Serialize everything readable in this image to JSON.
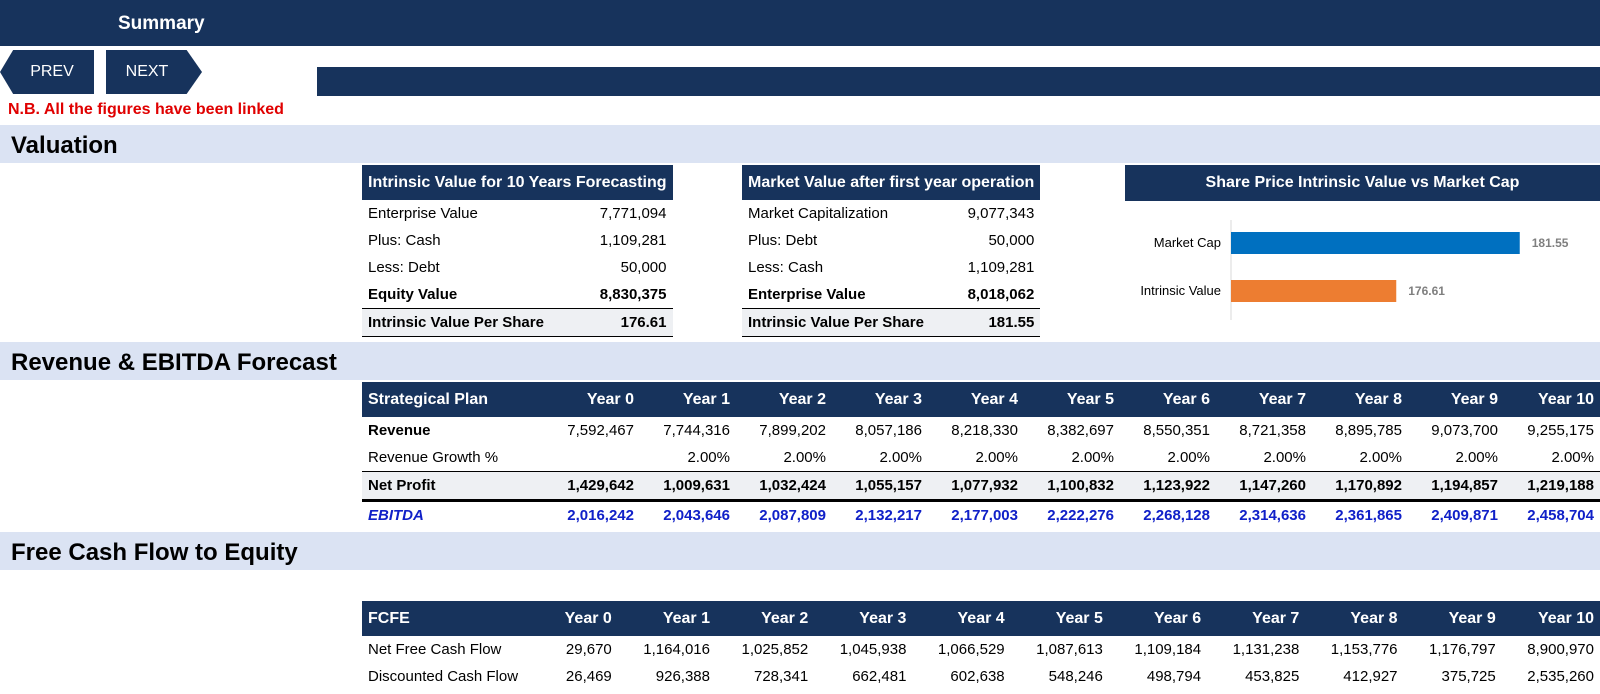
{
  "header": {
    "title": "Summary"
  },
  "nav": {
    "prev_label": "PREV",
    "next_label": "NEXT"
  },
  "note": "N.B. All the figures have been linked",
  "sections": {
    "valuation": "Valuation",
    "forecast": "Revenue & EBITDA Forecast",
    "fcfe": "Free Cash Flow to Equity"
  },
  "intrinsic_table": {
    "title": "Intrinsic Value for 10 Years Forecasting",
    "rows": [
      {
        "label": "Enterprise Value",
        "value": "7,771,094"
      },
      {
        "label": "Plus: Cash",
        "value": "1,109,281"
      },
      {
        "label": "Less: Debt",
        "value": "50,000"
      },
      {
        "label": "Equity Value",
        "value": "8,830,375"
      },
      {
        "label": "Intrinsic Value Per Share",
        "value": "176.61"
      }
    ]
  },
  "market_table": {
    "title": "Market Value after first year operation",
    "rows": [
      {
        "label": "Market Capitalization",
        "value": "9,077,343"
      },
      {
        "label": "Plus: Debt",
        "value": "50,000"
      },
      {
        "label": "Less: Cash",
        "value": "1,109,281"
      },
      {
        "label": "Enterprise Value",
        "value": "8,018,062"
      },
      {
        "label": "Intrinsic Value Per Share",
        "value": "181.55"
      }
    ]
  },
  "chart_data": {
    "type": "bar",
    "orientation": "horizontal",
    "title": "Share Price Intrinsic Value vs Market Cap",
    "categories": [
      "Market Cap",
      "Intrinsic Value"
    ],
    "values": [
      181.55,
      176.61
    ],
    "value_labels": [
      "181.55",
      "176.61"
    ],
    "colors": [
      "#0070c0",
      "#ed7d31"
    ],
    "xlim": [
      170,
      182
    ]
  },
  "forecast_table": {
    "headers": [
      "Strategical Plan",
      "Year 0",
      "Year 1",
      "Year 2",
      "Year 3",
      "Year 4",
      "Year 5",
      "Year 6",
      "Year 7",
      "Year 8",
      "Year 9",
      "Year 10"
    ],
    "revenue": {
      "label": "Revenue",
      "values": [
        "7,592,467",
        "7,744,316",
        "7,899,202",
        "8,057,186",
        "8,218,330",
        "8,382,697",
        "8,550,351",
        "8,721,358",
        "8,895,785",
        "9,073,700",
        "9,255,175"
      ]
    },
    "growth": {
      "label": "Revenue Growth %",
      "values": [
        "",
        "2.00%",
        "2.00%",
        "2.00%",
        "2.00%",
        "2.00%",
        "2.00%",
        "2.00%",
        "2.00%",
        "2.00%",
        "2.00%"
      ]
    },
    "net_profit": {
      "label": "Net Profit",
      "values": [
        "1,429,642",
        "1,009,631",
        "1,032,424",
        "1,055,157",
        "1,077,932",
        "1,100,832",
        "1,123,922",
        "1,147,260",
        "1,170,892",
        "1,194,857",
        "1,219,188"
      ]
    },
    "ebitda": {
      "label": "EBITDA",
      "values": [
        "2,016,242",
        "2,043,646",
        "2,087,809",
        "2,132,217",
        "2,177,003",
        "2,222,276",
        "2,268,128",
        "2,314,636",
        "2,361,865",
        "2,409,871",
        "2,458,704"
      ]
    }
  },
  "fcfe_table": {
    "headers": [
      "FCFE",
      "Year 0",
      "Year 1",
      "Year 2",
      "Year 3",
      "Year 4",
      "Year 5",
      "Year 6",
      "Year 7",
      "Year 8",
      "Year 9",
      "Year 10"
    ],
    "net_fcf": {
      "label": "Net Free Cash Flow",
      "values": [
        "29,670",
        "1,164,016",
        "1,025,852",
        "1,045,938",
        "1,066,529",
        "1,087,613",
        "1,109,184",
        "1,131,238",
        "1,153,776",
        "1,176,797",
        "8,900,970"
      ]
    },
    "dcf": {
      "label": "Discounted Cash Flow",
      "values": [
        "26,469",
        "926,388",
        "728,341",
        "662,481",
        "602,638",
        "548,246",
        "498,794",
        "453,825",
        "412,927",
        "375,725",
        "2,535,260"
      ]
    }
  },
  "colors": {
    "navy": "#17335c",
    "section_band": "#dbe3f3",
    "note_red": "#e00000",
    "ebitda_blue": "#1020c8"
  }
}
